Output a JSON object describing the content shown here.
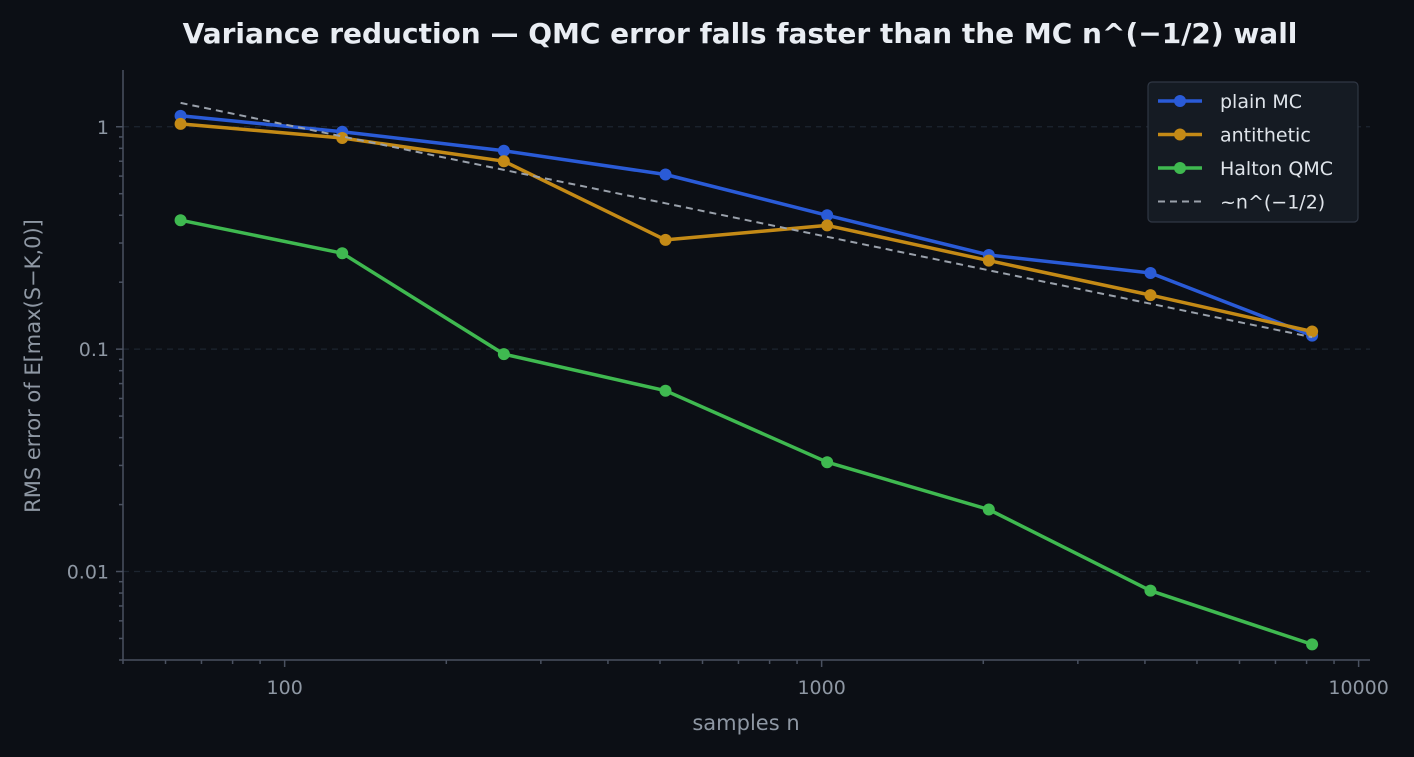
{
  "chart_data": {
    "type": "line",
    "title": "Variance reduction — QMC error falls faster than the MC n^(−1/2) wall",
    "xlabel": "samples n",
    "ylabel": "RMS error of E[max(S−K,0)]",
    "xscale": "log",
    "yscale": "log",
    "xlim": [
      50,
      10500
    ],
    "ylim": [
      0.004,
      1.8
    ],
    "x_ticks": [
      {
        "value": 100,
        "label": "100"
      },
      {
        "value": 1000,
        "label": "1000"
      },
      {
        "value": 10000,
        "label": "10000"
      }
    ],
    "y_ticks": [
      {
        "value": 1,
        "label": "1"
      },
      {
        "value": 0.1,
        "label": "0.1"
      },
      {
        "value": 0.01,
        "label": "0.01"
      }
    ],
    "grid": "horizontal-major",
    "legend_position": "top-right",
    "x": [
      64,
      128,
      256,
      512,
      1024,
      2048,
      4096,
      8192
    ],
    "series": [
      {
        "name": "plain MC",
        "color": "#2a5bd7",
        "style": "solid-marker",
        "values": [
          1.12,
          0.95,
          0.78,
          0.61,
          0.4,
          0.265,
          0.22,
          0.115
        ]
      },
      {
        "name": "antithetic",
        "color": "#c48a16",
        "style": "solid-marker",
        "values": [
          1.03,
          0.89,
          0.7,
          0.31,
          0.36,
          0.25,
          0.175,
          0.12
        ]
      },
      {
        "name": "Halton QMC",
        "color": "#3fb950",
        "style": "solid-marker",
        "values": [
          0.38,
          0.27,
          0.095,
          0.065,
          0.031,
          0.019,
          0.0082,
          0.0047
        ]
      },
      {
        "name": "~n^(−1/2)",
        "color": "#9aa1ab",
        "style": "dashed",
        "values": [
          1.28,
          0.905,
          0.64,
          0.4525,
          0.32,
          0.2263,
          0.16,
          0.1131
        ]
      }
    ]
  }
}
